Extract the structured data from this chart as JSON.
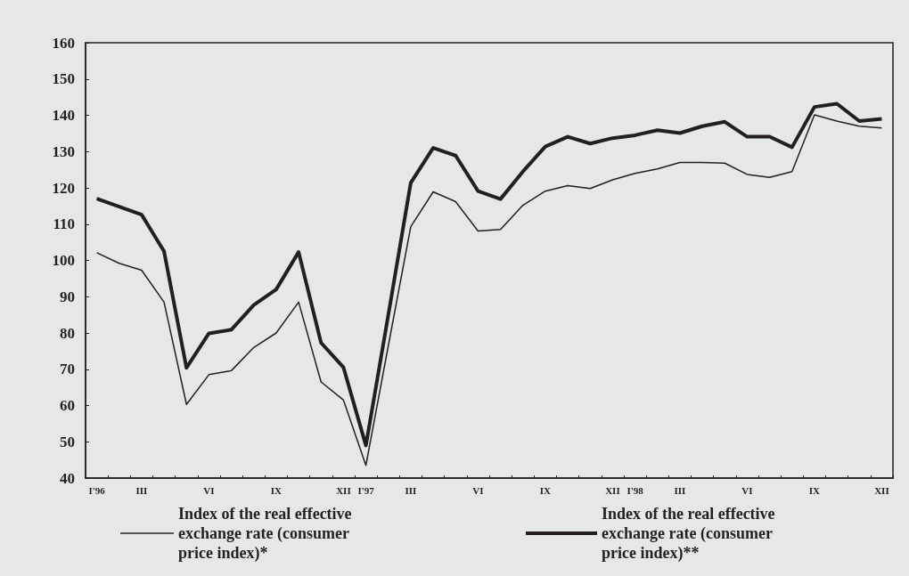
{
  "chart_data": {
    "type": "line",
    "categories": [
      "I'96",
      null,
      "III",
      null,
      null,
      "VI",
      null,
      null,
      "IX",
      null,
      null,
      "XII",
      "I'97",
      null,
      "III",
      null,
      null,
      "VI",
      null,
      null,
      "IX",
      null,
      null,
      "XII",
      "I'98",
      null,
      "III",
      null,
      null,
      "VI",
      null,
      null,
      "IX",
      null,
      null,
      "XII"
    ],
    "series": [
      {
        "name": "Index of the real effective exchange rate (consumer price index)*",
        "color": "#231f20",
        "values": [
          102.1,
          99.2,
          97.3,
          88.5,
          60.3,
          68.5,
          69.6,
          76,
          80,
          88.5,
          66.5,
          61.5,
          43.5,
          76.5,
          109.3,
          118.9,
          116.2,
          108.1,
          108.5,
          115.2,
          119.1,
          120.6,
          119.8,
          122.2,
          124,
          125.2,
          127,
          127,
          126.8,
          123.7,
          122.9,
          124.5,
          140.1,
          138.4,
          137,
          136.5
        ]
      },
      {
        "name": "Index of the real effective exchange rate (consumer price index)**",
        "color": "#231f20",
        "values": [
          117,
          114.8,
          112.6,
          102.5,
          70.4,
          79.9,
          80.9,
          87.7,
          92,
          102.3,
          77.3,
          70.5,
          49,
          85,
          121.4,
          131,
          128.9,
          119.1,
          116.9,
          124.5,
          131.4,
          134.1,
          132.2,
          133.7,
          134.5,
          135.9,
          135.1,
          137,
          138.2,
          134.1,
          134.1,
          131.2,
          142.3,
          143.2,
          138.4,
          139
        ]
      }
    ],
    "ylim": [
      40,
      160
    ],
    "yticks": [
      40,
      50,
      60,
      70,
      80,
      90,
      100,
      110,
      120,
      130,
      140,
      150,
      160
    ],
    "grid": false,
    "legend": "bottom",
    "marker": "none",
    "line_style": "solid"
  }
}
